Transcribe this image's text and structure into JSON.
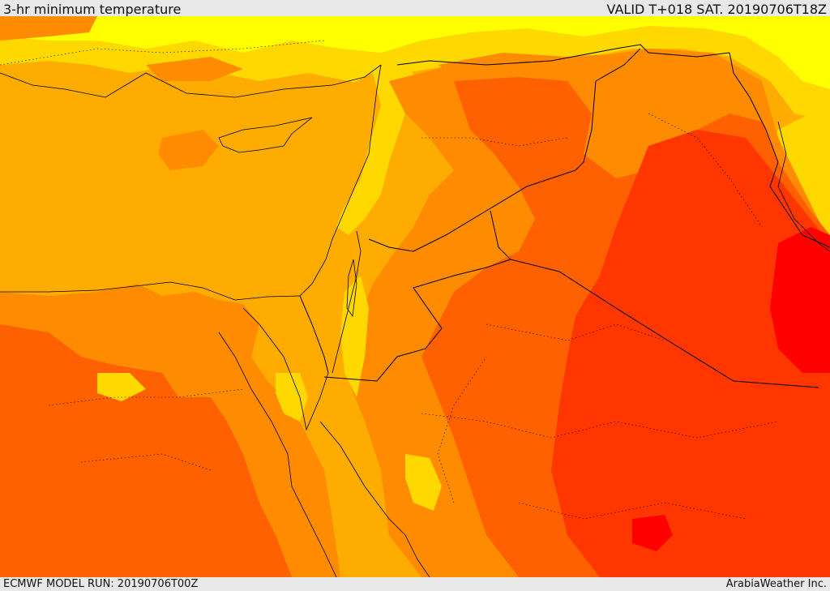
{
  "header": {
    "title": "3-hr minimum temperature",
    "valid": "VALID T+018 SAT. 20190706T18Z"
  },
  "footer": {
    "model_run": "ECMWF MODEL RUN: 20190706T00Z",
    "credit": "ArabiaWeather Inc."
  },
  "colors": {
    "band_yellow": "#FFFF00",
    "band_gold": "#FFD800",
    "band_amber": "#FFAC00",
    "band_orange": "#FF8C00",
    "band_dark_orange": "#FF6000",
    "band_red_orange": "#FF3600",
    "band_red": "#FF0000",
    "border_line": "#000000"
  }
}
